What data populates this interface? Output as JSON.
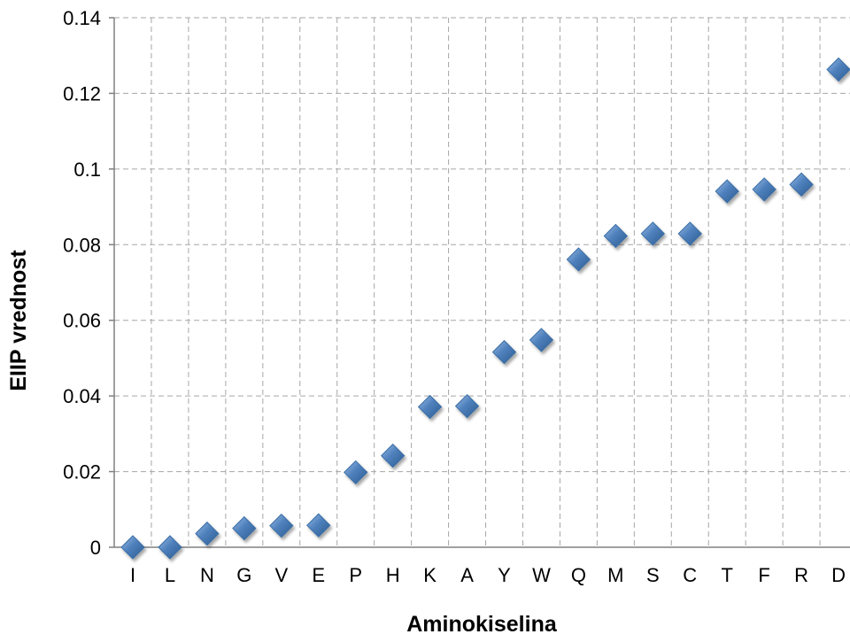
{
  "chart_data": {
    "type": "scatter",
    "title": "",
    "xlabel": "Aminokiselina",
    "ylabel": "EIIP vrednost",
    "categories": [
      "I",
      "L",
      "N",
      "G",
      "V",
      "E",
      "P",
      "H",
      "K",
      "A",
      "Y",
      "W",
      "Q",
      "M",
      "S",
      "C",
      "T",
      "F",
      "R",
      "D"
    ],
    "series": [
      {
        "values": [
          0.0,
          0.0,
          0.0036,
          0.005,
          0.0057,
          0.0058,
          0.0198,
          0.0242,
          0.0371,
          0.0373,
          0.0516,
          0.0548,
          0.0761,
          0.0823,
          0.0829,
          0.0829,
          0.0941,
          0.0946,
          0.0959,
          0.1263
        ]
      }
    ],
    "ylim": [
      0,
      0.14
    ],
    "yticks": [
      0,
      0.02,
      0.04,
      0.06,
      0.08,
      0.1,
      0.12,
      0.14
    ],
    "ytick_labels": [
      "0",
      "0.02",
      "0.04",
      "0.06",
      "0.08",
      "0.1",
      "0.12",
      "0.14"
    ],
    "grid": true,
    "legend": "none",
    "marker": "diamond",
    "marker_color": "#4f81bd"
  }
}
